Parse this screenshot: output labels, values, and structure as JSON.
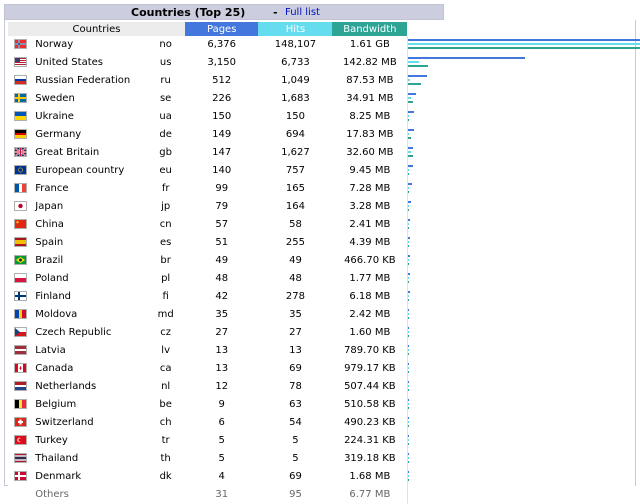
{
  "header": {
    "title": "Countries (Top 25)",
    "separator": "-",
    "full_list_label": "Full list"
  },
  "columns": {
    "country": "Countries",
    "pages": "Pages",
    "hits": "Hits",
    "bandwidth": "Bandwidth"
  },
  "colors": {
    "pages": "#4477dd",
    "hits": "#66ddee",
    "bandwidth": "#2ea495",
    "title_bar": "#cccdde"
  },
  "rows": [
    {
      "flag": "flag-no-icon",
      "country": "Norway",
      "code": "no",
      "pages": "6,376",
      "hits": "148,107",
      "bandwidth": "1.61 GB"
    },
    {
      "flag": "flag-us-icon",
      "country": "United States",
      "code": "us",
      "pages": "3,150",
      "hits": "6,733",
      "bandwidth": "142.82 MB"
    },
    {
      "flag": "flag-ru-icon",
      "country": "Russian Federation",
      "code": "ru",
      "pages": "512",
      "hits": "1,049",
      "bandwidth": "87.53 MB"
    },
    {
      "flag": "flag-se-icon",
      "country": "Sweden",
      "code": "se",
      "pages": "226",
      "hits": "1,683",
      "bandwidth": "34.91 MB"
    },
    {
      "flag": "flag-ua-icon",
      "country": "Ukraine",
      "code": "ua",
      "pages": "150",
      "hits": "150",
      "bandwidth": "8.25 MB"
    },
    {
      "flag": "flag-de-icon",
      "country": "Germany",
      "code": "de",
      "pages": "149",
      "hits": "694",
      "bandwidth": "17.83 MB"
    },
    {
      "flag": "flag-gb-icon",
      "country": "Great Britain",
      "code": "gb",
      "pages": "147",
      "hits": "1,627",
      "bandwidth": "32.60 MB"
    },
    {
      "flag": "flag-eu-icon",
      "country": "European country",
      "code": "eu",
      "pages": "140",
      "hits": "757",
      "bandwidth": "9.45 MB"
    },
    {
      "flag": "flag-fr-icon",
      "country": "France",
      "code": "fr",
      "pages": "99",
      "hits": "165",
      "bandwidth": "7.28 MB"
    },
    {
      "flag": "flag-jp-icon",
      "country": "Japan",
      "code": "jp",
      "pages": "79",
      "hits": "164",
      "bandwidth": "3.28 MB"
    },
    {
      "flag": "flag-cn-icon",
      "country": "China",
      "code": "cn",
      "pages": "57",
      "hits": "58",
      "bandwidth": "2.41 MB"
    },
    {
      "flag": "flag-es-icon",
      "country": "Spain",
      "code": "es",
      "pages": "51",
      "hits": "255",
      "bandwidth": "4.39 MB"
    },
    {
      "flag": "flag-br-icon",
      "country": "Brazil",
      "code": "br",
      "pages": "49",
      "hits": "49",
      "bandwidth": "466.70 KB"
    },
    {
      "flag": "flag-pl-icon",
      "country": "Poland",
      "code": "pl",
      "pages": "48",
      "hits": "48",
      "bandwidth": "1.77 MB"
    },
    {
      "flag": "flag-fi-icon",
      "country": "Finland",
      "code": "fi",
      "pages": "42",
      "hits": "278",
      "bandwidth": "6.18 MB"
    },
    {
      "flag": "flag-md-icon",
      "country": "Moldova",
      "code": "md",
      "pages": "35",
      "hits": "35",
      "bandwidth": "2.42 MB"
    },
    {
      "flag": "flag-cz-icon",
      "country": "Czech Republic",
      "code": "cz",
      "pages": "27",
      "hits": "27",
      "bandwidth": "1.60 MB"
    },
    {
      "flag": "flag-lv-icon",
      "country": "Latvia",
      "code": "lv",
      "pages": "13",
      "hits": "13",
      "bandwidth": "789.70 KB"
    },
    {
      "flag": "flag-ca-icon",
      "country": "Canada",
      "code": "ca",
      "pages": "13",
      "hits": "69",
      "bandwidth": "979.17 KB"
    },
    {
      "flag": "flag-nl-icon",
      "country": "Netherlands",
      "code": "nl",
      "pages": "12",
      "hits": "78",
      "bandwidth": "507.44 KB"
    },
    {
      "flag": "flag-be-icon",
      "country": "Belgium",
      "code": "be",
      "pages": "9",
      "hits": "63",
      "bandwidth": "510.58 KB"
    },
    {
      "flag": "flag-ch-icon",
      "country": "Switzerland",
      "code": "ch",
      "pages": "6",
      "hits": "54",
      "bandwidth": "490.23 KB"
    },
    {
      "flag": "flag-tr-icon",
      "country": "Turkey",
      "code": "tr",
      "pages": "5",
      "hits": "5",
      "bandwidth": "224.31 KB"
    },
    {
      "flag": "flag-th-icon",
      "country": "Thailand",
      "code": "th",
      "pages": "5",
      "hits": "5",
      "bandwidth": "319.18 KB"
    },
    {
      "flag": "flag-dk-icon",
      "country": "Denmark",
      "code": "dk",
      "pages": "4",
      "hits": "69",
      "bandwidth": "1.68 MB"
    }
  ],
  "others": {
    "label": "Others",
    "pages": "31",
    "hits": "95",
    "bandwidth": "6.77 MB"
  }
}
